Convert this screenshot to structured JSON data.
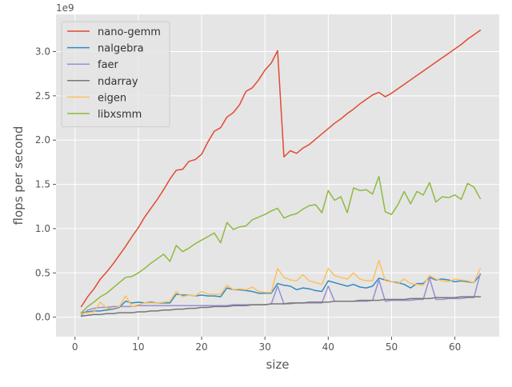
{
  "chart_data": {
    "type": "line",
    "xlabel": "size",
    "ylabel": "flops per second",
    "offset_label": "1e9",
    "xlim": [
      -3,
      67
    ],
    "ylim": [
      -0.22,
      3.42
    ],
    "y_scale_note": "values in units of 1e9 flops/s",
    "x_ticks": [
      0,
      10,
      20,
      30,
      40,
      50,
      60
    ],
    "y_ticks": [
      0.0,
      0.5,
      1.0,
      1.5,
      2.0,
      2.5,
      3.0
    ],
    "y_tick_labels": [
      "0.0",
      "0.5",
      "1.0",
      "1.5",
      "2.0",
      "2.5",
      "3.0"
    ],
    "grid": true,
    "legend_position": "top-left",
    "x": [
      1,
      2,
      3,
      4,
      5,
      6,
      7,
      8,
      9,
      10,
      11,
      12,
      13,
      14,
      15,
      16,
      17,
      18,
      19,
      20,
      21,
      22,
      23,
      24,
      25,
      26,
      27,
      28,
      29,
      30,
      31,
      32,
      33,
      34,
      35,
      36,
      37,
      38,
      39,
      40,
      41,
      42,
      43,
      44,
      45,
      46,
      47,
      48,
      49,
      50,
      51,
      52,
      53,
      54,
      55,
      56,
      57,
      58,
      59,
      60,
      61,
      62,
      63,
      64
    ],
    "series": [
      {
        "name": "nano-gemm",
        "color": "#E24A33",
        "values": [
          0.12,
          0.23,
          0.32,
          0.43,
          0.51,
          0.6,
          0.7,
          0.8,
          0.91,
          1.01,
          1.13,
          1.23,
          1.33,
          1.44,
          1.56,
          1.66,
          1.67,
          1.76,
          1.78,
          1.84,
          1.98,
          2.1,
          2.14,
          2.26,
          2.31,
          2.4,
          2.55,
          2.59,
          2.68,
          2.79,
          2.87,
          3.01,
          1.81,
          1.88,
          1.85,
          1.91,
          1.95,
          2.01,
          2.07,
          2.13,
          2.19,
          2.24,
          2.3,
          2.35,
          2.41,
          2.46,
          2.51,
          2.54,
          2.49,
          2.53,
          2.58,
          2.63,
          2.68,
          2.73,
          2.78,
          2.83,
          2.88,
          2.93,
          2.98,
          3.03,
          3.08,
          3.14,
          3.19,
          3.24
        ]
      },
      {
        "name": "nalgebra",
        "color": "#348ABD",
        "values": [
          0.05,
          0.06,
          0.07,
          0.07,
          0.08,
          0.09,
          0.11,
          0.18,
          0.16,
          0.17,
          0.16,
          0.17,
          0.16,
          0.16,
          0.16,
          0.26,
          0.25,
          0.25,
          0.24,
          0.25,
          0.24,
          0.24,
          0.23,
          0.33,
          0.31,
          0.31,
          0.3,
          0.29,
          0.27,
          0.27,
          0.27,
          0.38,
          0.36,
          0.35,
          0.31,
          0.33,
          0.32,
          0.3,
          0.29,
          0.41,
          0.39,
          0.37,
          0.35,
          0.37,
          0.34,
          0.33,
          0.35,
          0.44,
          0.42,
          0.4,
          0.39,
          0.37,
          0.33,
          0.38,
          0.38,
          0.45,
          0.42,
          0.43,
          0.42,
          0.4,
          0.41,
          0.4,
          0.39,
          0.48
        ]
      },
      {
        "name": "faer",
        "color": "#988ED5",
        "values": [
          0.02,
          0.08,
          0.1,
          0.11,
          0.11,
          0.12,
          0.12,
          0.12,
          0.12,
          0.13,
          0.13,
          0.13,
          0.13,
          0.13,
          0.13,
          0.13,
          0.13,
          0.13,
          0.13,
          0.13,
          0.13,
          0.13,
          0.13,
          0.13,
          0.14,
          0.14,
          0.14,
          0.14,
          0.14,
          0.14,
          0.15,
          0.35,
          0.15,
          0.15,
          0.16,
          0.16,
          0.16,
          0.16,
          0.16,
          0.35,
          0.18,
          0.18,
          0.18,
          0.18,
          0.18,
          0.18,
          0.19,
          0.42,
          0.18,
          0.19,
          0.19,
          0.19,
          0.19,
          0.2,
          0.2,
          0.44,
          0.2,
          0.2,
          0.21,
          0.21,
          0.21,
          0.22,
          0.22,
          0.49
        ]
      },
      {
        "name": "ndarray",
        "color": "#777777",
        "values": [
          0.01,
          0.02,
          0.03,
          0.03,
          0.04,
          0.04,
          0.05,
          0.05,
          0.05,
          0.06,
          0.06,
          0.07,
          0.07,
          0.08,
          0.08,
          0.09,
          0.09,
          0.1,
          0.1,
          0.11,
          0.11,
          0.12,
          0.12,
          0.12,
          0.13,
          0.13,
          0.13,
          0.14,
          0.14,
          0.14,
          0.15,
          0.15,
          0.15,
          0.16,
          0.16,
          0.16,
          0.17,
          0.17,
          0.17,
          0.17,
          0.18,
          0.18,
          0.18,
          0.18,
          0.19,
          0.19,
          0.19,
          0.19,
          0.2,
          0.2,
          0.2,
          0.2,
          0.21,
          0.21,
          0.21,
          0.21,
          0.22,
          0.22,
          0.22,
          0.22,
          0.23,
          0.23,
          0.23,
          0.23
        ]
      },
      {
        "name": "eigen",
        "color": "#FBC15E",
        "values": [
          0.04,
          0.05,
          0.06,
          0.17,
          0.1,
          0.1,
          0.12,
          0.24,
          0.12,
          0.14,
          0.16,
          0.16,
          0.16,
          0.17,
          0.18,
          0.29,
          0.23,
          0.25,
          0.24,
          0.29,
          0.26,
          0.26,
          0.26,
          0.36,
          0.31,
          0.32,
          0.31,
          0.34,
          0.29,
          0.28,
          0.28,
          0.55,
          0.45,
          0.42,
          0.41,
          0.48,
          0.41,
          0.39,
          0.37,
          0.55,
          0.47,
          0.45,
          0.43,
          0.5,
          0.43,
          0.41,
          0.41,
          0.64,
          0.41,
          0.4,
          0.38,
          0.43,
          0.38,
          0.37,
          0.36,
          0.47,
          0.43,
          0.41,
          0.4,
          0.43,
          0.42,
          0.41,
          0.39,
          0.55
        ]
      },
      {
        "name": "libxsmm",
        "color": "#8EBA42",
        "values": [
          0.05,
          0.12,
          0.17,
          0.23,
          0.27,
          0.33,
          0.39,
          0.45,
          0.46,
          0.5,
          0.55,
          0.61,
          0.66,
          0.71,
          0.63,
          0.81,
          0.74,
          0.78,
          0.83,
          0.87,
          0.91,
          0.95,
          0.84,
          1.07,
          0.99,
          1.02,
          1.03,
          1.1,
          1.13,
          1.16,
          1.2,
          1.23,
          1.12,
          1.15,
          1.17,
          1.22,
          1.26,
          1.27,
          1.18,
          1.43,
          1.32,
          1.36,
          1.18,
          1.46,
          1.43,
          1.44,
          1.39,
          1.59,
          1.19,
          1.16,
          1.27,
          1.42,
          1.28,
          1.42,
          1.38,
          1.52,
          1.3,
          1.36,
          1.35,
          1.38,
          1.33,
          1.51,
          1.47,
          1.34
        ]
      }
    ]
  }
}
